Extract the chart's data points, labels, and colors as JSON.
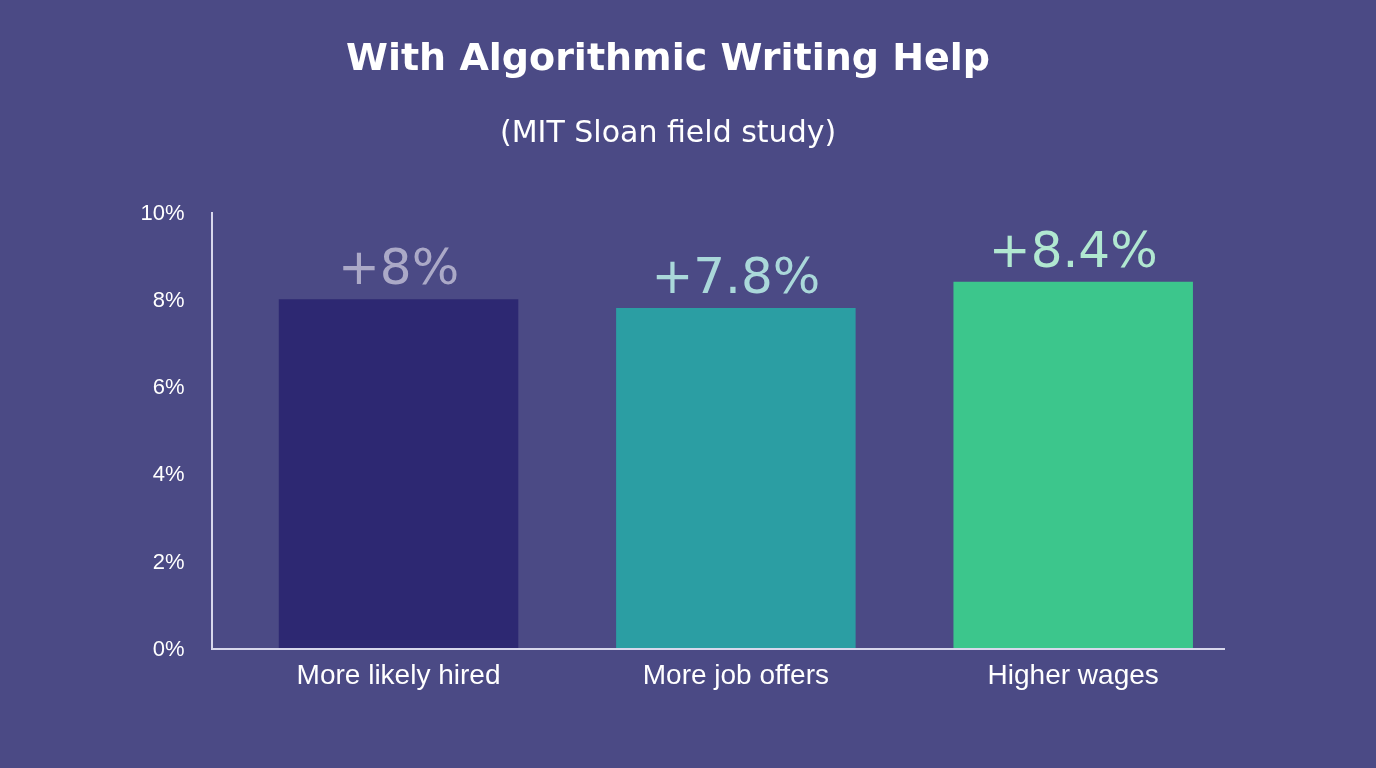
{
  "chart_data": {
    "type": "bar",
    "title": "With Algorithmic Writing Help",
    "subtitle": "(MIT Sloan field study)",
    "categories": [
      "More likely hired",
      "More job offers",
      "Higher wages"
    ],
    "values": [
      8,
      7.8,
      8.4
    ],
    "value_labels": [
      "+8%",
      "+7.8%",
      "+8.4%"
    ],
    "colors": [
      "#2d2872",
      "#2b9ea3",
      "#3cc68c"
    ],
    "ylim": [
      0,
      10
    ],
    "yticks": [
      {
        "value": 0,
        "label": "0%"
      },
      {
        "value": 2,
        "label": "2%"
      },
      {
        "value": 4,
        "label": "4%"
      },
      {
        "value": 6,
        "label": "6%"
      },
      {
        "value": 8,
        "label": "8%"
      },
      {
        "value": 10,
        "label": "10%"
      }
    ],
    "grid": false
  }
}
